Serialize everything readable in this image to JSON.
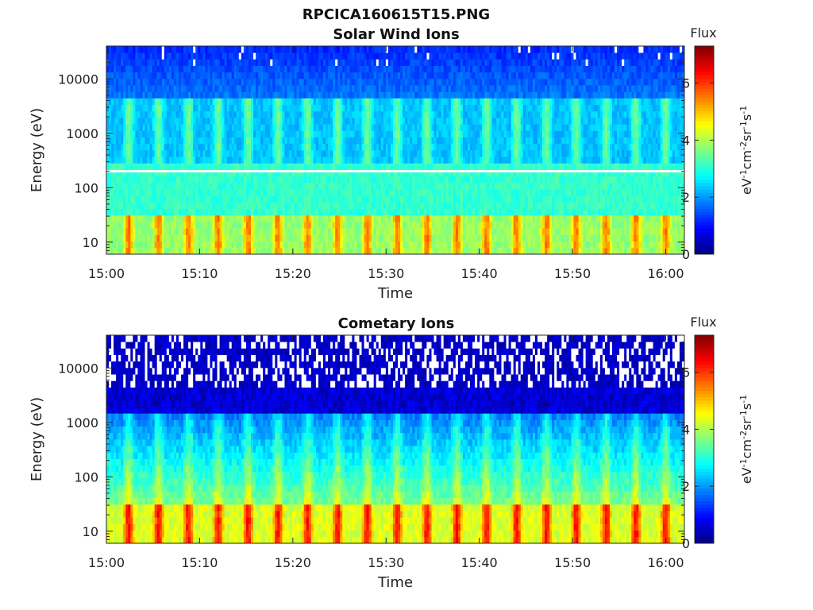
{
  "figure_title": "RPCICA160615T15.PNG",
  "colors": {
    "saturated_line": "#ffffff",
    "axis": "#262626",
    "background": "#ffffff"
  },
  "chart_data": [
    {
      "type": "heatmap",
      "title": "Solar Wind Ions",
      "xlabel": "Time",
      "ylabel": "Energy (eV)",
      "yscale": "log",
      "x_ticks": [
        "15:00",
        "15:10",
        "15:20",
        "15:30",
        "15:40",
        "15:50",
        "16:00"
      ],
      "x_range": [
        "15:00",
        "16:02"
      ],
      "y_ticks": [
        "10",
        "100",
        "1000",
        "10000"
      ],
      "y_range": [
        6,
        40000
      ],
      "colorbar": {
        "label": "Flux",
        "unit_label": "eV-1cm-2sr-1s-1",
        "colormap": "jet",
        "ticks": [
          "0",
          "2",
          "4",
          "6"
        ],
        "range": [
          0,
          7.3
        ]
      },
      "features": {
        "low_energy_peak_flux": 5.5,
        "low_energy_band_eV": [
          6,
          30
        ],
        "mid_band_eV": [
          500,
          3000
        ],
        "mid_band_flux": 3.2,
        "high_energy_flux": 1.2,
        "white_line_eV": 200,
        "sweep_period_min": 3.2
      }
    },
    {
      "type": "heatmap",
      "title": "Cometary Ions",
      "xlabel": "Time",
      "ylabel": "Energy (eV)",
      "yscale": "log",
      "x_ticks": [
        "15:00",
        "15:10",
        "15:20",
        "15:30",
        "15:40",
        "15:50",
        "16:00"
      ],
      "x_range": [
        "15:00",
        "16:02"
      ],
      "y_ticks": [
        "10",
        "100",
        "1000",
        "10000"
      ],
      "y_range": [
        6,
        40000
      ],
      "colorbar": {
        "label": "Flux",
        "unit_label": "eV-1cm-2sr-1s-1",
        "colormap": "jet",
        "ticks": [
          "0",
          "2",
          "4",
          "6"
        ],
        "range": [
          0,
          7.3
        ]
      },
      "features": {
        "low_energy_peak_flux": 6.3,
        "low_energy_band_eV": [
          6,
          30
        ],
        "mid_band_eV": [
          100,
          1000
        ],
        "mid_band_flux": 3.0,
        "high_energy_flux": 0.6,
        "sweep_period_min": 3.2
      }
    }
  ]
}
